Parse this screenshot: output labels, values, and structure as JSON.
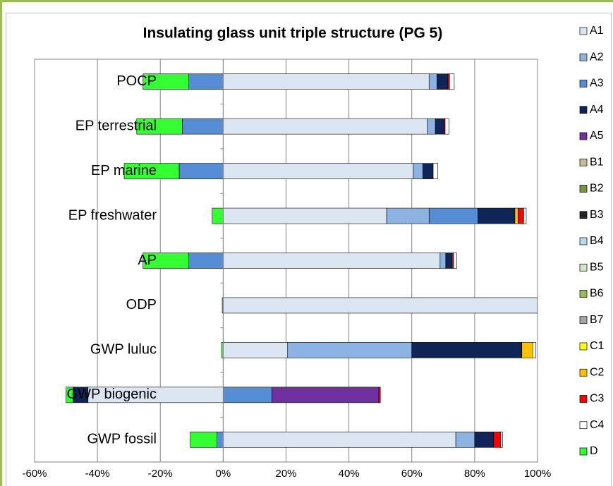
{
  "chart_data": {
    "type": "stacked_barh",
    "title": "Insulating glass unit triple structure (PG 5)",
    "categories": [
      "POCP",
      "EP terrestrial",
      "EP marine",
      "EP freshwater",
      "AP",
      "ODP",
      "GWP luluc",
      "GWP biogenic",
      "GWP fossil"
    ],
    "xlim": [
      -60,
      100
    ],
    "xticks": [
      {
        "value": -60,
        "label": "-60%"
      },
      {
        "value": -40,
        "label": "-40%"
      },
      {
        "value": -20,
        "label": "-20%"
      },
      {
        "value": 0,
        "label": "0%"
      },
      {
        "value": 20,
        "label": "20%"
      },
      {
        "value": 40,
        "label": "40%"
      },
      {
        "value": 60,
        "label": "60%"
      },
      {
        "value": 80,
        "label": "80%"
      },
      {
        "value": 100,
        "label": "100%"
      }
    ],
    "grid": true,
    "legend": "right",
    "series": [
      {
        "name": "A1",
        "color": "#dce6f2",
        "values": [
          65.5,
          65,
          60.5,
          52,
          69,
          100,
          20.5,
          -43,
          74
        ]
      },
      {
        "name": "A2",
        "color": "#8db3e2",
        "values": [
          2.5,
          2.5,
          3,
          13.5,
          1.8,
          0,
          39.5,
          0,
          6
        ]
      },
      {
        "name": "A3",
        "color": "#558ed5",
        "values": [
          -11,
          -13,
          -14,
          15.5,
          -11,
          0,
          0,
          15.5,
          -2
        ]
      },
      {
        "name": "A4",
        "color": "#0f2557",
        "values": [
          3.5,
          2.8,
          3.3,
          11.8,
          2,
          0,
          35,
          -4.8,
          6
        ]
      },
      {
        "name": "A5",
        "color": "#7030a0",
        "values": [
          0,
          0,
          0,
          0,
          0,
          0,
          0,
          34,
          0
        ]
      },
      {
        "name": "B1",
        "color": "#c4bd97",
        "values": [
          0,
          0,
          0,
          0,
          0,
          0,
          0,
          0,
          0
        ]
      },
      {
        "name": "B2",
        "color": "#77933c",
        "values": [
          0,
          0,
          0,
          0,
          0,
          0,
          0,
          0,
          0
        ]
      },
      {
        "name": "B3",
        "color": "#262626",
        "values": [
          0,
          0,
          0,
          0,
          0,
          0,
          0,
          0,
          0
        ]
      },
      {
        "name": "B4",
        "color": "#b7dee8",
        "values": [
          0,
          0,
          0,
          0,
          0,
          0,
          0,
          0,
          0
        ]
      },
      {
        "name": "B5",
        "color": "#d7e4bd",
        "values": [
          0,
          0,
          0,
          0,
          0,
          0,
          0,
          0,
          0
        ]
      },
      {
        "name": "B6",
        "color": "#9bbb59",
        "values": [
          0,
          0,
          0,
          0,
          0,
          0,
          0,
          0,
          0
        ]
      },
      {
        "name": "B7",
        "color": "#a6a6a6",
        "values": [
          0,
          0,
          0,
          0,
          0,
          0,
          0,
          0,
          0
        ]
      },
      {
        "name": "C1",
        "color": "#ffff00",
        "values": [
          0,
          0,
          0,
          0,
          0,
          0,
          0,
          0,
          0
        ]
      },
      {
        "name": "C2",
        "color": "#ffc000",
        "values": [
          0,
          0,
          0,
          1,
          0,
          0,
          3.5,
          0,
          0
        ]
      },
      {
        "name": "C3",
        "color": "#ff0000",
        "values": [
          0.5,
          0.3,
          0,
          1.8,
          0.5,
          0,
          0,
          0.5,
          2.3
        ]
      },
      {
        "name": "C4",
        "color": "#ffffff",
        "values": [
          1.5,
          1.2,
          1.5,
          0.8,
          1,
          0,
          1,
          0,
          0.6
        ]
      },
      {
        "name": "D",
        "color": "#33ff33",
        "values": [
          -14.5,
          -14.5,
          -17.5,
          -3.5,
          -14.5,
          -0.3,
          -0.5,
          -2.2,
          -8.5
        ]
      }
    ]
  }
}
